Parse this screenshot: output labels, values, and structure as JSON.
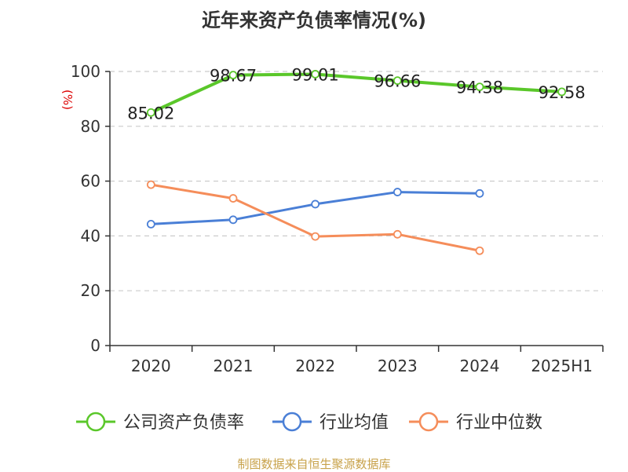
{
  "chart_data": {
    "type": "line",
    "title": "近年来资产负债率情况(%)",
    "ylabel": "(%)",
    "ylim": [
      0,
      100
    ],
    "yticks": [
      0,
      20,
      40,
      60,
      80,
      100
    ],
    "categories": [
      "2020",
      "2021",
      "2022",
      "2023",
      "2024",
      "2025H1"
    ],
    "grid": true,
    "legend_position": "bottom",
    "series": [
      {
        "name": "公司资产负债率",
        "color": "#5ac72a",
        "values": [
          85.02,
          98.67,
          99.01,
          96.66,
          94.38,
          92.58
        ],
        "labels": [
          "85.02",
          "98.67",
          "99.01",
          "96.66",
          "94.38",
          "92.58"
        ]
      },
      {
        "name": "行业均值",
        "color": "#4a7fd6",
        "values": [
          44.3,
          45.9,
          51.6,
          56.0,
          55.5,
          null
        ]
      },
      {
        "name": "行业中位数",
        "color": "#f58d5a",
        "values": [
          58.7,
          53.7,
          39.8,
          40.6,
          34.6,
          null
        ]
      }
    ],
    "source": "制图数据来自恒生聚源数据库"
  }
}
